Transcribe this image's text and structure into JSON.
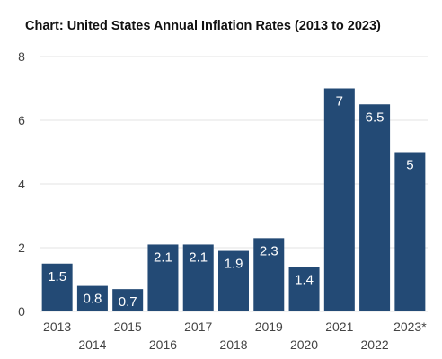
{
  "chart_data": {
    "type": "bar",
    "title": "Chart: United States Annual Inflation Rates (2013 to 2023)",
    "categories": [
      "2013",
      "2014",
      "2015",
      "2016",
      "2017",
      "2018",
      "2019",
      "2020",
      "2021",
      "2022",
      "2023*"
    ],
    "values": [
      1.5,
      0.8,
      0.7,
      2.1,
      2.1,
      1.9,
      2.3,
      1.4,
      7,
      6.5,
      5
    ],
    "data_labels": [
      "1.5",
      "0.8",
      "0.7",
      "2.1",
      "2.1",
      "1.9",
      "2.3",
      "1.4",
      "7",
      "6.5",
      "5"
    ],
    "yticks": [
      "0",
      "2",
      "4",
      "6",
      "8"
    ],
    "ylim": [
      0,
      8
    ],
    "xlabel": "",
    "ylabel": "",
    "grid": true,
    "legend": "none",
    "bar_color": "#234a75",
    "grid_color": "#e3e3e3"
  }
}
